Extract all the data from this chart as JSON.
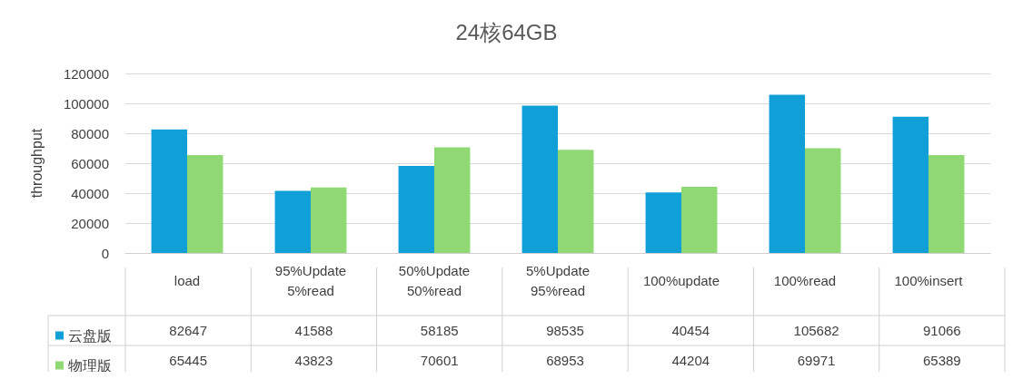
{
  "chart_data": {
    "type": "bar",
    "title": "24核64GB",
    "ylabel": "throughput",
    "categories": [
      "load",
      "95%Update\n5%read",
      "50%Update\n50%read",
      "5%Update\n95%read",
      "100%update",
      "100%read",
      "100%insert"
    ],
    "series": [
      {
        "name": "云盘版",
        "color": "#119fd8",
        "values": [
          82647,
          41588,
          58185,
          98535,
          40454,
          105682,
          91066
        ]
      },
      {
        "name": "物理版",
        "color": "#8fd873",
        "values": [
          65445,
          43823,
          70601,
          68953,
          44204,
          69971,
          65389
        ]
      }
    ],
    "ylim": [
      0,
      120000
    ],
    "yticks": [
      0,
      20000,
      40000,
      60000,
      80000,
      100000,
      120000
    ],
    "grid": "y",
    "legend": "bottom left",
    "data_labels": true
  }
}
